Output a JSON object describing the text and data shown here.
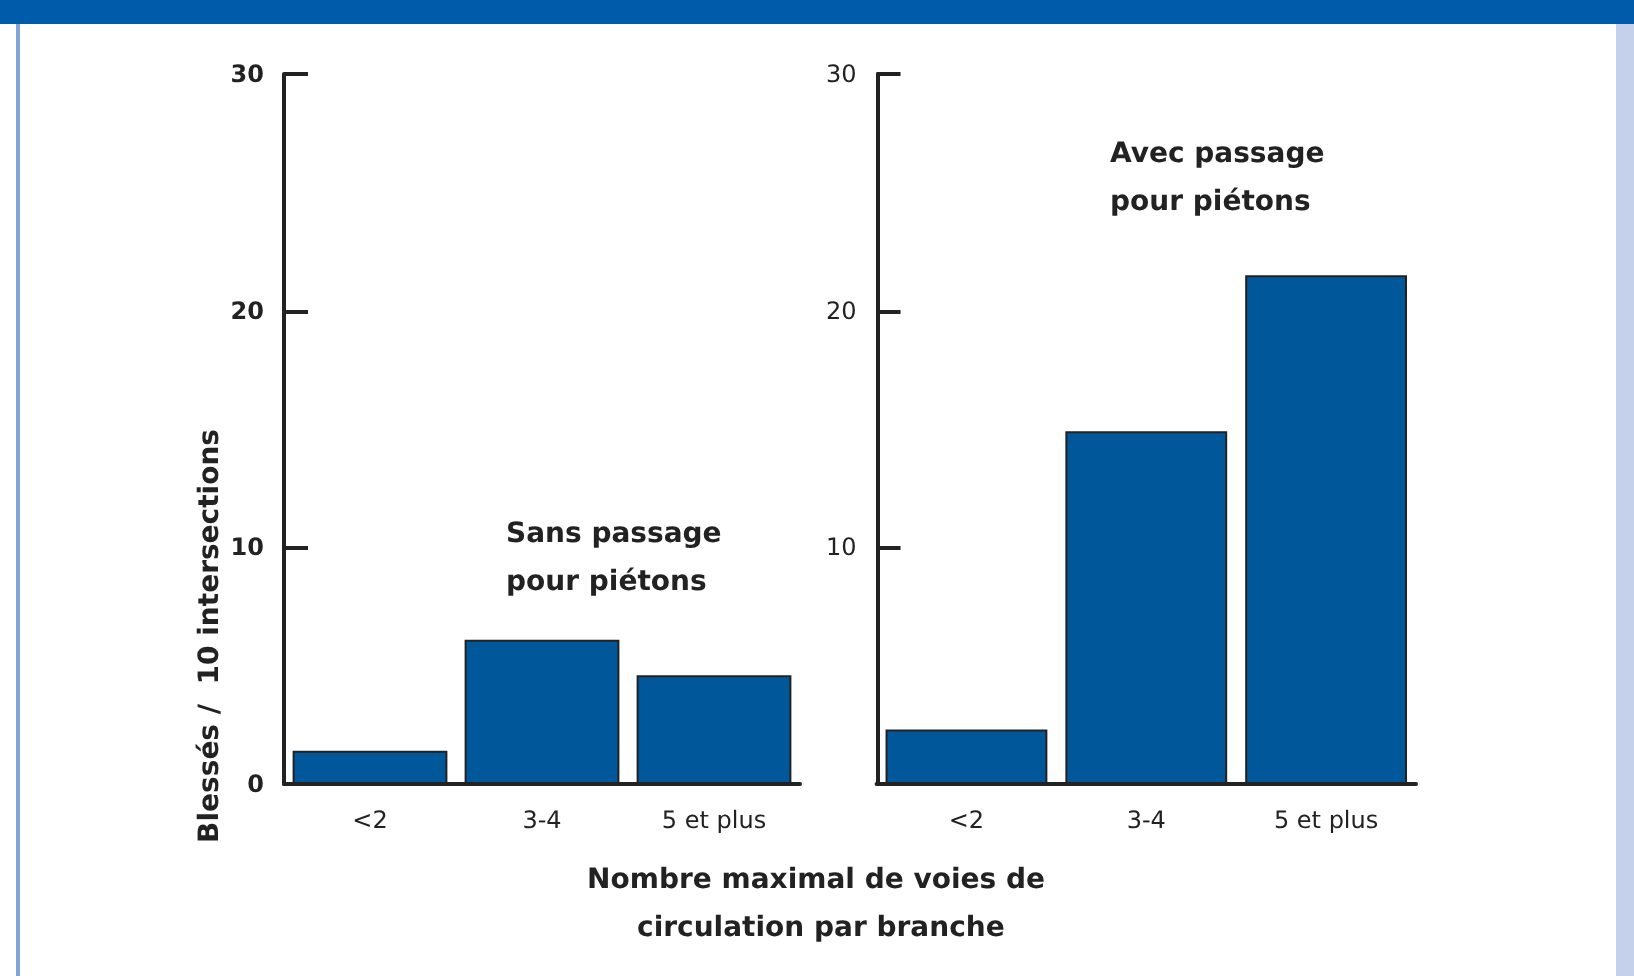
{
  "chart_data": [
    {
      "type": "bar",
      "title": "Sans passage pour piétons",
      "ylabel": "Blessés /  10 intersections",
      "xlabel": "Nombre maximal de voies de circulation par branche",
      "categories": [
        "<2",
        "3-4",
        "5 et plus"
      ],
      "values": [
        1.4,
        6.1,
        4.6
      ],
      "color": "#00589a",
      "ylim": [
        0,
        30
      ],
      "yticks": [
        0,
        10,
        20,
        30
      ]
    },
    {
      "type": "bar",
      "title": "Avec passage pour piétons",
      "categories": [
        "<2",
        "3-4",
        "5 et plus"
      ],
      "values": [
        2.3,
        14.9,
        21.5
      ],
      "color": "#00589a",
      "ylim": [
        0,
        30
      ],
      "yticks": [
        10,
        20,
        30
      ]
    }
  ]
}
